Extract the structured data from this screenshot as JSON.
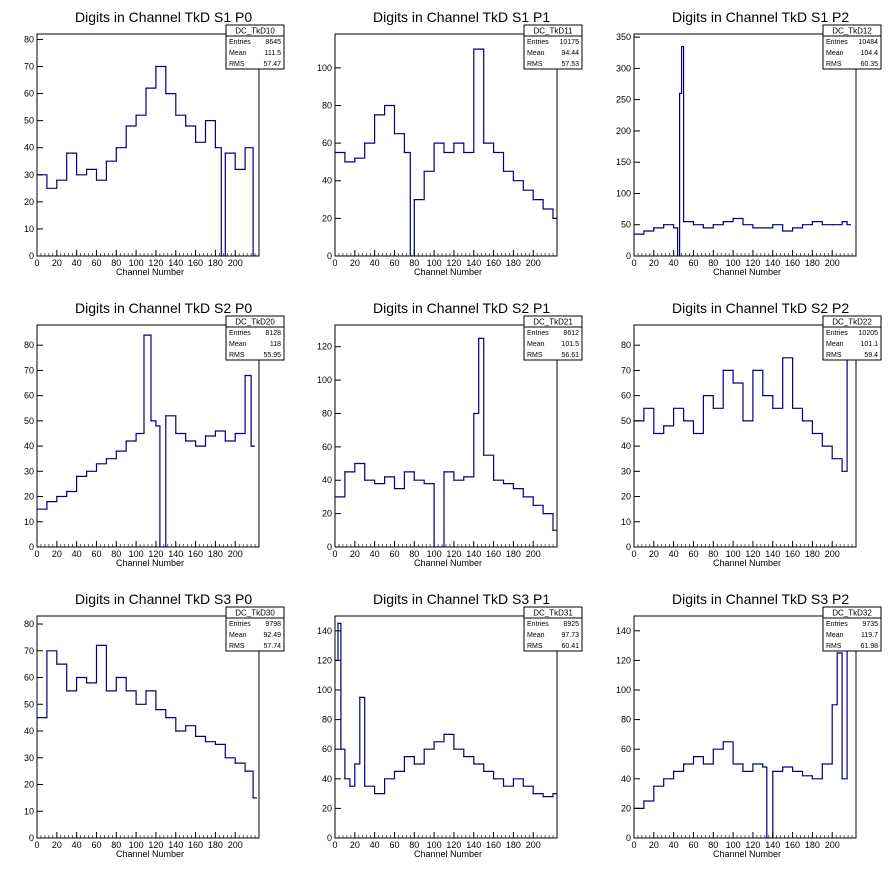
{
  "page": {
    "title": ""
  },
  "colors": {
    "line": "#000080",
    "axis": "#000000",
    "background": "#ffffff"
  },
  "chart_data": [
    {
      "type": "line",
      "id": "DC_TkD10",
      "title": "Digits in Channel TkD S1 P0",
      "xlabel": "Channel Number",
      "ylabel": "",
      "xlim": [
        0,
        224
      ],
      "ylim": [
        0,
        82
      ],
      "xticks": [
        0,
        20,
        40,
        60,
        80,
        100,
        120,
        140,
        160,
        180,
        200
      ],
      "yticks": [
        0,
        10,
        20,
        30,
        40,
        50,
        60,
        70,
        80
      ],
      "stats": {
        "name": "DC_TkD10",
        "rows": [
          {
            "label": "Entries",
            "value": "8645"
          },
          {
            "label": "Mean",
            "value": "111.5"
          },
          {
            "label": "RMS",
            "value": "57.47"
          }
        ]
      },
      "x": [
        0,
        10,
        20,
        30,
        40,
        50,
        60,
        70,
        80,
        90,
        100,
        110,
        120,
        130,
        140,
        150,
        160,
        170,
        180,
        186,
        190,
        200,
        210,
        218
      ],
      "values": [
        30,
        25,
        28,
        38,
        30,
        32,
        28,
        35,
        40,
        48,
        52,
        62,
        70,
        60,
        52,
        48,
        42,
        50,
        40,
        0,
        38,
        32,
        40,
        0
      ]
    },
    {
      "type": "line",
      "id": "DC_TkD11",
      "title": "Digits in Channel TkD S1 P1",
      "xlabel": "Channel Number",
      "ylabel": "",
      "xlim": [
        0,
        224
      ],
      "ylim": [
        0,
        118
      ],
      "xticks": [
        0,
        20,
        40,
        60,
        80,
        100,
        120,
        140,
        160,
        180,
        200
      ],
      "yticks": [
        0,
        20,
        40,
        60,
        80,
        100
      ],
      "stats": {
        "name": "DC_TkD11",
        "rows": [
          {
            "label": "Entries",
            "value": "10175"
          },
          {
            "label": "Mean",
            "value": "94.44"
          },
          {
            "label": "RMS",
            "value": "57.53"
          }
        ]
      },
      "x": [
        0,
        10,
        20,
        30,
        40,
        50,
        60,
        70,
        76,
        80,
        90,
        100,
        110,
        120,
        130,
        140,
        150,
        160,
        170,
        180,
        190,
        200,
        210,
        220
      ],
      "values": [
        55,
        50,
        52,
        60,
        75,
        80,
        65,
        55,
        0,
        30,
        45,
        60,
        55,
        60,
        55,
        110,
        60,
        55,
        45,
        40,
        35,
        30,
        25,
        20
      ]
    },
    {
      "type": "line",
      "id": "DC_TkD12",
      "title": "Digits in Channel TkD S1 P2",
      "xlabel": "Channel Number",
      "ylabel": "",
      "xlim": [
        0,
        224
      ],
      "ylim": [
        0,
        355
      ],
      "xticks": [
        0,
        20,
        40,
        60,
        80,
        100,
        120,
        140,
        160,
        180,
        200
      ],
      "yticks": [
        0,
        50,
        100,
        150,
        200,
        250,
        300,
        350
      ],
      "stats": {
        "name": "DC_TkD12",
        "rows": [
          {
            "label": "Entries",
            "value": "10484"
          },
          {
            "label": "Mean",
            "value": "104.4"
          },
          {
            "label": "RMS",
            "value": "60.35"
          }
        ]
      },
      "x": [
        0,
        10,
        20,
        30,
        40,
        44,
        46,
        48,
        50,
        60,
        70,
        80,
        90,
        100,
        110,
        120,
        130,
        140,
        150,
        160,
        170,
        180,
        190,
        200,
        210,
        215
      ],
      "values": [
        35,
        40,
        45,
        50,
        45,
        0,
        260,
        335,
        55,
        50,
        45,
        50,
        55,
        60,
        50,
        45,
        45,
        50,
        40,
        45,
        50,
        55,
        50,
        50,
        55,
        50
      ]
    },
    {
      "type": "line",
      "id": "DC_TkD20",
      "title": "Digits in Channel TkD S2 P0",
      "xlabel": "Channel Number",
      "ylabel": "",
      "xlim": [
        0,
        224
      ],
      "ylim": [
        0,
        88
      ],
      "xticks": [
        0,
        20,
        40,
        60,
        80,
        100,
        120,
        140,
        160,
        180,
        200
      ],
      "yticks": [
        0,
        10,
        20,
        30,
        40,
        50,
        60,
        70,
        80
      ],
      "stats": {
        "name": "DC_TkD20",
        "rows": [
          {
            "label": "Entries",
            "value": "8128"
          },
          {
            "label": "Mean",
            "value": "118"
          },
          {
            "label": "RMS",
            "value": "55.95"
          }
        ]
      },
      "x": [
        0,
        10,
        20,
        30,
        40,
        50,
        60,
        70,
        80,
        90,
        100,
        108,
        115,
        120,
        124,
        130,
        140,
        150,
        160,
        170,
        180,
        190,
        200,
        210,
        216
      ],
      "values": [
        15,
        18,
        20,
        22,
        28,
        30,
        33,
        35,
        38,
        42,
        45,
        84,
        50,
        48,
        0,
        52,
        45,
        42,
        40,
        44,
        46,
        42,
        45,
        68,
        40
      ]
    },
    {
      "type": "line",
      "id": "DC_TkD21",
      "title": "Digits in Channel TkD S2 P1",
      "xlabel": "Channel Number",
      "ylabel": "",
      "xlim": [
        0,
        224
      ],
      "ylim": [
        0,
        133
      ],
      "xticks": [
        0,
        20,
        40,
        60,
        80,
        100,
        120,
        140,
        160,
        180,
        200
      ],
      "yticks": [
        0,
        20,
        40,
        60,
        80,
        100,
        120
      ],
      "stats": {
        "name": "DC_TkD21",
        "rows": [
          {
            "label": "Entries",
            "value": "8612"
          },
          {
            "label": "Mean",
            "value": "101.5"
          },
          {
            "label": "RMS",
            "value": "56.61"
          }
        ]
      },
      "x": [
        0,
        10,
        20,
        30,
        40,
        50,
        60,
        70,
        80,
        90,
        100,
        110,
        120,
        130,
        140,
        145,
        150,
        160,
        170,
        180,
        190,
        200,
        210,
        220
      ],
      "values": [
        30,
        45,
        50,
        40,
        38,
        42,
        35,
        45,
        40,
        38,
        0,
        45,
        40,
        42,
        80,
        125,
        55,
        40,
        38,
        35,
        30,
        25,
        20,
        10
      ]
    },
    {
      "type": "line",
      "id": "DC_TkD22",
      "title": "Digits in Channel TkD S2 P2",
      "xlabel": "Channel Number",
      "ylabel": "",
      "xlim": [
        0,
        224
      ],
      "ylim": [
        0,
        88
      ],
      "xticks": [
        0,
        20,
        40,
        60,
        80,
        100,
        120,
        140,
        160,
        180,
        200
      ],
      "yticks": [
        0,
        10,
        20,
        30,
        40,
        50,
        60,
        70,
        80
      ],
      "stats": {
        "name": "DC_TkD22",
        "rows": [
          {
            "label": "Entries",
            "value": "10205"
          },
          {
            "label": "Mean",
            "value": "101.1"
          },
          {
            "label": "RMS",
            "value": "59.4"
          }
        ]
      },
      "x": [
        0,
        10,
        20,
        30,
        40,
        50,
        60,
        70,
        80,
        90,
        100,
        110,
        120,
        130,
        140,
        150,
        160,
        170,
        180,
        190,
        200,
        210,
        215
      ],
      "values": [
        50,
        55,
        45,
        48,
        55,
        50,
        45,
        60,
        55,
        70,
        65,
        50,
        70,
        60,
        55,
        75,
        55,
        50,
        45,
        40,
        35,
        30,
        80
      ]
    },
    {
      "type": "line",
      "id": "DC_TkD30",
      "title": "Digits in Channel TkD S3 P0",
      "xlabel": "Channel Number",
      "ylabel": "",
      "xlim": [
        0,
        224
      ],
      "ylim": [
        0,
        83
      ],
      "xticks": [
        0,
        20,
        40,
        60,
        80,
        100,
        120,
        140,
        160,
        180,
        200
      ],
      "yticks": [
        0,
        10,
        20,
        30,
        40,
        50,
        60,
        70,
        80
      ],
      "stats": {
        "name": "DC_TkD30",
        "rows": [
          {
            "label": "Entries",
            "value": "9798"
          },
          {
            "label": "Mean",
            "value": "92.49"
          },
          {
            "label": "RMS",
            "value": "57.74"
          }
        ]
      },
      "x": [
        0,
        10,
        20,
        30,
        40,
        50,
        60,
        70,
        80,
        90,
        100,
        110,
        120,
        130,
        140,
        150,
        160,
        170,
        180,
        190,
        200,
        210,
        218
      ],
      "values": [
        45,
        70,
        65,
        55,
        60,
        58,
        72,
        55,
        60,
        55,
        50,
        55,
        48,
        45,
        40,
        42,
        38,
        36,
        35,
        30,
        28,
        25,
        15
      ]
    },
    {
      "type": "line",
      "id": "DC_TkD31",
      "title": "Digits in Channel TkD S3 P1",
      "xlabel": "Channel Number",
      "ylabel": "",
      "xlim": [
        0,
        224
      ],
      "ylim": [
        0,
        150
      ],
      "xticks": [
        0,
        20,
        40,
        60,
        80,
        100,
        120,
        140,
        160,
        180,
        200
      ],
      "yticks": [
        0,
        20,
        40,
        60,
        80,
        100,
        120,
        140
      ],
      "stats": {
        "name": "DC_TkD31",
        "rows": [
          {
            "label": "Entries",
            "value": "8925"
          },
          {
            "label": "Mean",
            "value": "97.73"
          },
          {
            "label": "RMS",
            "value": "60.41"
          }
        ]
      },
      "x": [
        0,
        3,
        6,
        10,
        15,
        20,
        25,
        30,
        40,
        50,
        60,
        70,
        80,
        90,
        100,
        110,
        120,
        130,
        140,
        150,
        160,
        170,
        180,
        190,
        200,
        210,
        220
      ],
      "values": [
        120,
        145,
        60,
        40,
        35,
        50,
        95,
        35,
        30,
        40,
        45,
        55,
        50,
        60,
        65,
        70,
        60,
        55,
        50,
        45,
        40,
        35,
        40,
        35,
        30,
        28,
        30
      ]
    },
    {
      "type": "line",
      "id": "DC_TkD32",
      "title": "Digits in Channel TkD S3 P2",
      "xlabel": "Channel Number",
      "ylabel": "",
      "xlim": [
        0,
        224
      ],
      "ylim": [
        0,
        150
      ],
      "xticks": [
        0,
        20,
        40,
        60,
        80,
        100,
        120,
        140,
        160,
        180,
        200
      ],
      "yticks": [
        0,
        20,
        40,
        60,
        80,
        100,
        120,
        140
      ],
      "stats": {
        "name": "DC_TkD32",
        "rows": [
          {
            "label": "Entries",
            "value": "9735"
          },
          {
            "label": "Mean",
            "value": "119.7"
          },
          {
            "label": "RMS",
            "value": "61.98"
          }
        ]
      },
      "x": [
        0,
        10,
        20,
        30,
        40,
        50,
        60,
        70,
        80,
        90,
        100,
        110,
        120,
        130,
        134,
        140,
        150,
        160,
        170,
        180,
        190,
        200,
        205,
        210,
        215
      ],
      "values": [
        20,
        25,
        35,
        40,
        45,
        50,
        55,
        50,
        60,
        65,
        50,
        45,
        50,
        48,
        0,
        45,
        48,
        45,
        42,
        40,
        50,
        90,
        125,
        40,
        145
      ]
    }
  ]
}
